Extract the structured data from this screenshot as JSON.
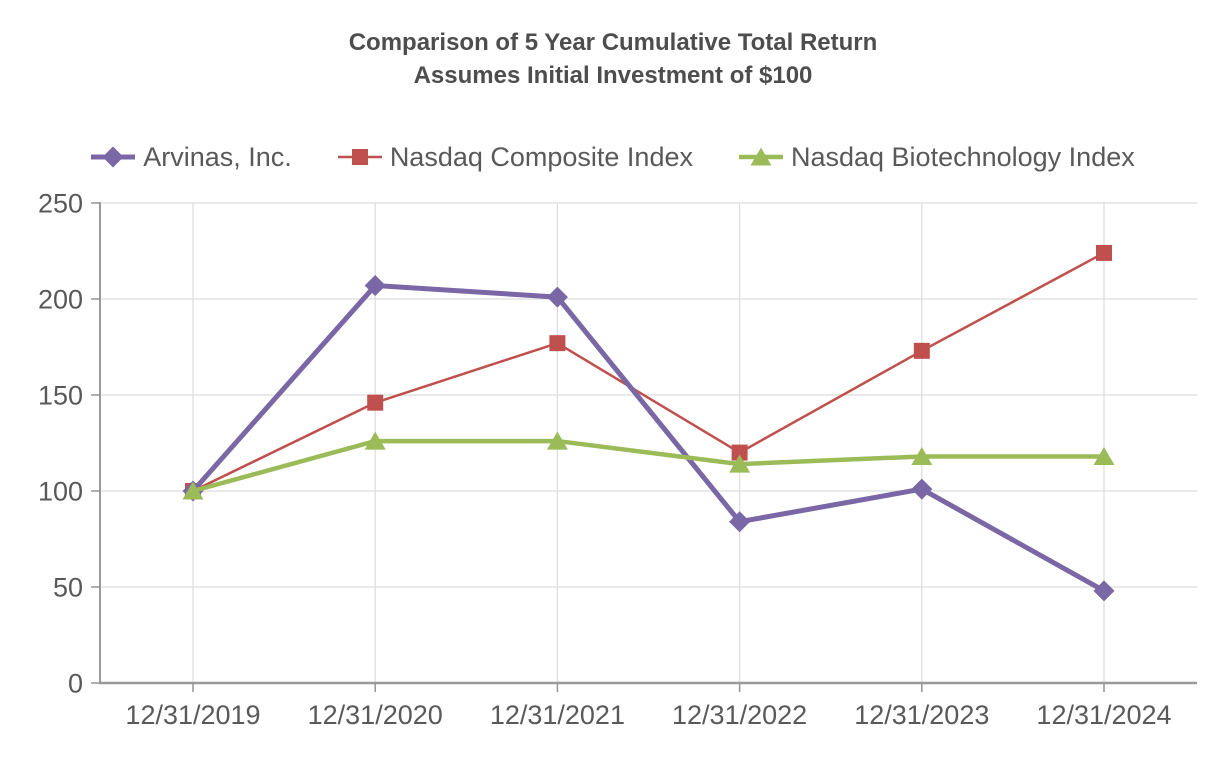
{
  "chart_data": {
    "type": "line",
    "title": "Comparison of 5 Year Cumulative Total Return",
    "subtitle": "Assumes Initial Investment of $100",
    "categories": [
      "12/31/2019",
      "12/31/2020",
      "12/31/2021",
      "12/31/2022",
      "12/31/2023",
      "12/31/2024"
    ],
    "series": [
      {
        "name": "Arvinas, Inc.",
        "values": [
          100,
          207,
          201,
          84,
          101,
          48
        ],
        "color": "#7A67A5",
        "marker": "diamond",
        "line_width": 5
      },
      {
        "name": "Nasdaq Composite Index",
        "values": [
          100,
          146,
          177,
          120,
          173,
          224
        ],
        "color": "#C0504D",
        "marker": "square",
        "line_width": 2.5
      },
      {
        "name": "Nasdaq Biotechnology Index",
        "values": [
          100,
          126,
          126,
          114,
          118,
          118
        ],
        "color": "#9BBB59",
        "marker": "triangle",
        "line_width": 4.5
      }
    ],
    "y_axis": {
      "min": 0,
      "max": 250,
      "tick_step": 50,
      "tick_labels": [
        "0",
        "50",
        "100",
        "150",
        "200",
        "250"
      ]
    },
    "x_axis": {
      "tick_labels": [
        "12/31/2019",
        "12/31/2020",
        "12/31/2021",
        "12/31/2022",
        "12/31/2023",
        "12/31/2024"
      ]
    },
    "grid": true,
    "legend_position": "top",
    "z_order": [
      1,
      0,
      2
    ]
  },
  "colors": {
    "title_text": "#4D4D4D",
    "axis_text": "#595959",
    "gridline": "#DEDEDE",
    "axis_line": "#9A9A9A",
    "background": "#FFFFFF"
  }
}
